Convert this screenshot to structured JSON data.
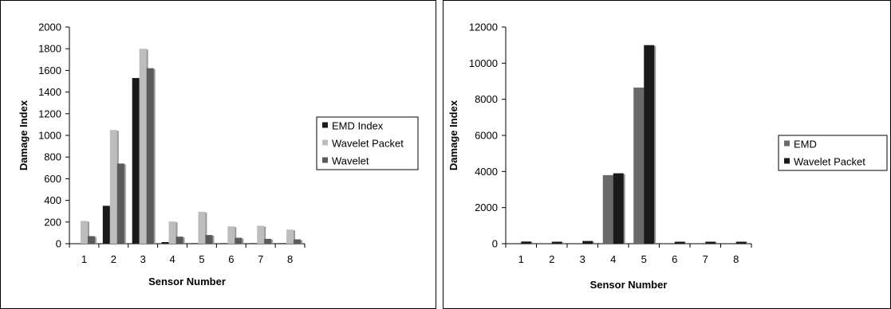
{
  "chart_data": [
    {
      "type": "bar",
      "xlabel": "Sensor Number",
      "ylabel": "Damage Index",
      "categories": [
        "1",
        "2",
        "3",
        "4",
        "5",
        "6",
        "7",
        "8"
      ],
      "ylim": [
        0,
        2000
      ],
      "yticks": [
        "0",
        "200",
        "400",
        "600",
        "800",
        "1000",
        "1200",
        "1400",
        "1600",
        "1800",
        "2000"
      ],
      "grid": false,
      "legend_position": "right",
      "series": [
        {
          "name": "EMD Index",
          "color": "#1a1a1a",
          "values": [
            0,
            350,
            1530,
            15,
            5,
            5,
            5,
            5
          ]
        },
        {
          "name": "Wavelet Packet",
          "color": "#bdbdbd",
          "values": [
            210,
            1050,
            1800,
            205,
            295,
            160,
            165,
            130
          ]
        },
        {
          "name": "Wavelet",
          "color": "#5a5a5a",
          "values": [
            70,
            740,
            1620,
            65,
            80,
            55,
            45,
            40
          ]
        }
      ]
    },
    {
      "type": "bar",
      "xlabel": "Sensor Number",
      "ylabel": "Damage Index",
      "categories": [
        "1",
        "2",
        "3",
        "4",
        "5",
        "6",
        "7",
        "8"
      ],
      "ylim": [
        0,
        12000
      ],
      "yticks": [
        "0",
        "2000",
        "4000",
        "6000",
        "8000",
        "10000",
        "12000"
      ],
      "grid": false,
      "legend_position": "right",
      "series": [
        {
          "name": "EMD",
          "color": "#6a6a6a",
          "values": [
            0,
            0,
            0,
            3800,
            8650,
            0,
            0,
            0
          ]
        },
        {
          "name": "Wavelet Packet",
          "color": "#1a1a1a",
          "values": [
            120,
            110,
            150,
            3900,
            11000,
            110,
            110,
            110
          ]
        }
      ]
    }
  ]
}
